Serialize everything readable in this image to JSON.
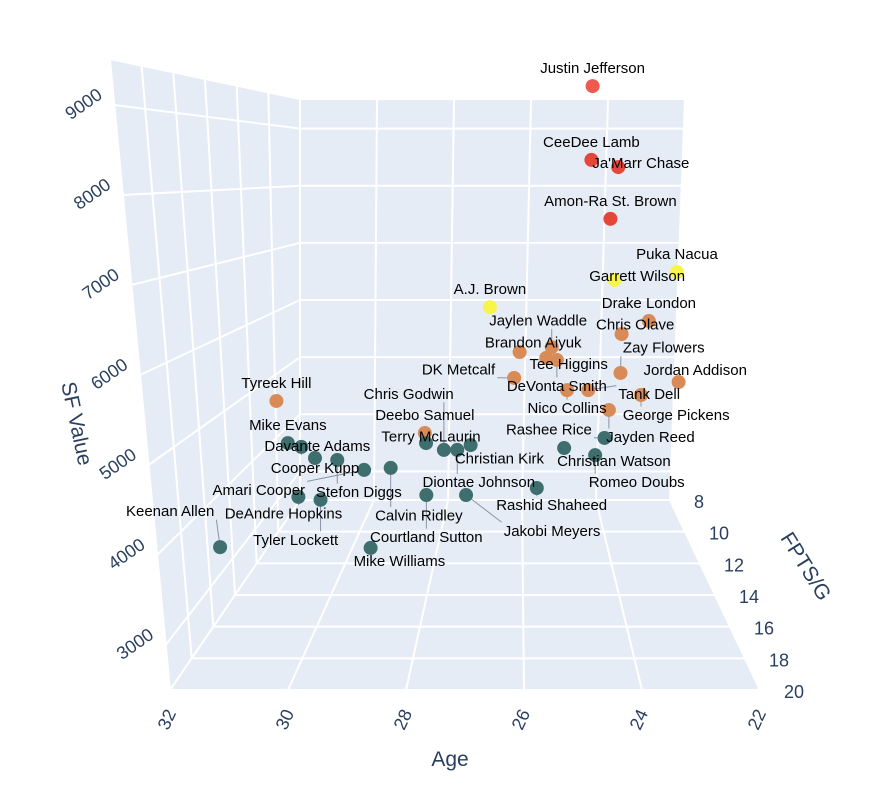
{
  "chart_data": {
    "type": "scatter3d",
    "title": "",
    "axes": {
      "x": {
        "label": "Age",
        "range": [
          22,
          32
        ],
        "reversed": true,
        "ticks": [
          32,
          30,
          28,
          26,
          24,
          22
        ]
      },
      "y": {
        "label": "FPTS/G",
        "range": [
          8,
          20
        ],
        "ticks": [
          8,
          10,
          12,
          14,
          16,
          18,
          20
        ]
      },
      "z": {
        "label": "SF Value",
        "range": [
          2500,
          9500
        ],
        "ticks": [
          3000,
          4000,
          5000,
          6000,
          7000,
          8000,
          9000
        ]
      }
    },
    "grid": true,
    "panel_color": "#e5ecf6",
    "grid_color": "#ffffff",
    "points": [
      {
        "name": "Justin Jefferson",
        "age": 25.0,
        "fpts": 20.0,
        "value": 9210,
        "color": "#ee5a4f"
      },
      {
        "name": "CeeDee Lamb",
        "age": 25.0,
        "fpts": 20.0,
        "value": 8390,
        "color": "#e5463a"
      },
      {
        "name": "Ja'Marr Chase",
        "age": 24.6,
        "fpts": 20.0,
        "value": 8310,
        "color": "#e5463a"
      },
      {
        "name": "Amon-Ra St. Brown",
        "age": 24.7,
        "fpts": 20.0,
        "value": 7735,
        "color": "#e5463a"
      },
      {
        "name": "Puka Nacua",
        "age": 23.5,
        "fpts": 18.0,
        "value": 7070,
        "color": "#f7f54a"
      },
      {
        "name": "Garrett Wilson",
        "age": 24.2,
        "fpts": 13.0,
        "value": 6725,
        "color": "#f7f54a"
      },
      {
        "name": "A.J. Brown",
        "age": 26.6,
        "fpts": 17.0,
        "value": 6600,
        "color": "#f7f54a"
      },
      {
        "name": "Drake London",
        "age": 23.7,
        "fpts": 15.2,
        "value": 6313,
        "color": "#d88b57"
      },
      {
        "name": "Chris Olave",
        "age": 24.2,
        "fpts": 15.2,
        "value": 6142,
        "color": "#d88b57"
      },
      {
        "name": "Brandon Aiyuk",
        "age": 26.1,
        "fpts": 15.2,
        "value": 5909,
        "color": "#d88b57"
      },
      {
        "name": "Jaylen Waddle",
        "age": 25.5,
        "fpts": 15.2,
        "value": 5973,
        "color": "#d88b57"
      },
      {
        "name": "DeVonta Smith",
        "age": 25.4,
        "fpts": 15.2,
        "value": 5805,
        "color": "#d88b57"
      },
      {
        "name": "Tee Higgins",
        "age": 25.6,
        "fpts": 15.2,
        "value": 5832,
        "color": "#d88b57"
      },
      {
        "name": "DK Metcalf",
        "age": 26.2,
        "fpts": 15.2,
        "value": 5571,
        "color": "#d88b57"
      },
      {
        "name": "Zay Flowers",
        "age": 24.2,
        "fpts": 15.2,
        "value": 5636,
        "color": "#d88b57"
      },
      {
        "name": "Nico Collins",
        "age": 25.2,
        "fpts": 15.2,
        "value": 5413,
        "color": "#d88b57"
      },
      {
        "name": "Tank Dell",
        "age": 24.8,
        "fpts": 15.2,
        "value": 5413,
        "color": "#d88b57"
      },
      {
        "name": "George Pickens",
        "age": 23.8,
        "fpts": 15.2,
        "value": 5349,
        "color": "#d88b57"
      },
      {
        "name": "Jordan Addison",
        "age": 23.1,
        "fpts": 15.2,
        "value": 5518,
        "color": "#d88b57"
      },
      {
        "name": "Jayden Reed",
        "age": 24.4,
        "fpts": 15.2,
        "value": 5155,
        "color": "#d88b57"
      },
      {
        "name": "Tyreek Hill",
        "age": 30.7,
        "fpts": 15.2,
        "value": 5272,
        "color": "#d88b57"
      },
      {
        "name": "Deebo Samuel",
        "age": 27.9,
        "fpts": 15.2,
        "value": 4855,
        "color": "#d88b57"
      },
      {
        "name": "Rashee Rice",
        "age": 24.2,
        "fpts": 11.6,
        "value": 4277,
        "color": "#3e6e6d"
      },
      {
        "name": "Romeo Doubs",
        "age": 24.4,
        "fpts": 11.6,
        "value": 4020,
        "color": "#3e6e6d"
      },
      {
        "name": "Christian Watson",
        "age": 25.1,
        "fpts": 11.6,
        "value": 4126,
        "color": "#3e6e6d"
      },
      {
        "name": "Davante Adams",
        "age": 31.0,
        "fpts": 11.6,
        "value": 4143,
        "color": "#3e6e6d"
      },
      {
        "name": "Mike Evans",
        "age": 31.3,
        "fpts": 11.6,
        "value": 4200,
        "color": "#3e6e6d"
      },
      {
        "name": "Cooper Kupp",
        "age": 30.7,
        "fpts": 11.6,
        "value": 3977,
        "color": "#3e6e6d"
      },
      {
        "name": "Stefon Diggs",
        "age": 30.2,
        "fpts": 11.6,
        "value": 3948,
        "color": "#3e6e6d"
      },
      {
        "name": "Amari Cooper",
        "age": 29.6,
        "fpts": 11.6,
        "value": 3800,
        "color": "#3e6e6d"
      },
      {
        "name": "Calvin Ridley",
        "age": 29.0,
        "fpts": 11.6,
        "value": 3830,
        "color": "#3e6e6d"
      },
      {
        "name": "Terry McLaurin",
        "age": 28.2,
        "fpts": 11.6,
        "value": 4200,
        "color": "#3e6e6d"
      },
      {
        "name": "Chris Godwin",
        "age": 27.8,
        "fpts": 11.6,
        "value": 4098,
        "color": "#3e6e6d"
      },
      {
        "name": "Diontae Johnson",
        "age": 27.5,
        "fpts": 11.6,
        "value": 4098,
        "color": "#3e6e6d"
      },
      {
        "name": "Christian Kirk",
        "age": 27.2,
        "fpts": 11.6,
        "value": 4170,
        "color": "#3e6e6d"
      },
      {
        "name": "DeAndre Hopkins",
        "age": 31.1,
        "fpts": 11.6,
        "value": 3397,
        "color": "#3e6e6d"
      },
      {
        "name": "Tyler Lockett",
        "age": 30.6,
        "fpts": 11.6,
        "value": 3353,
        "color": "#3e6e6d"
      },
      {
        "name": "Courtland Sutton",
        "age": 28.2,
        "fpts": 11.6,
        "value": 3425,
        "color": "#3e6e6d"
      },
      {
        "name": "Jakobi Meyers",
        "age": 27.3,
        "fpts": 11.6,
        "value": 3425,
        "color": "#3e6e6d"
      },
      {
        "name": "Rashid Shaheed",
        "age": 25.7,
        "fpts": 11.6,
        "value": 3530,
        "color": "#3e6e6d"
      },
      {
        "name": "Keenan Allen",
        "age": 31.95,
        "fpts": 15.2,
        "value": 3370,
        "color": "#3e6e6d"
      },
      {
        "name": "Mike Williams",
        "age": 29.0,
        "fpts": 15.2,
        "value": 3360,
        "color": "#3e6e6d"
      }
    ]
  }
}
